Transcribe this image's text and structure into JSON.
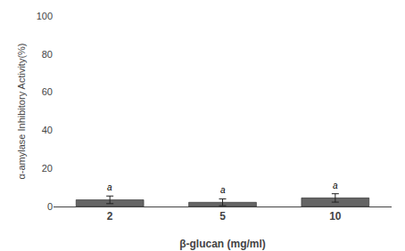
{
  "chart_data": {
    "type": "bar",
    "categories": [
      "2",
      "5",
      "10"
    ],
    "values": [
      3.5,
      2.2,
      4.5
    ],
    "errors": [
      2.0,
      1.8,
      2.2
    ],
    "annotations": [
      "a",
      "a",
      "a"
    ],
    "color": "#646464",
    "xlabel": "β-glucan (mg/ml)",
    "ylabel": "α-amylase Inhibitory Activity(%)",
    "ylim": [
      0,
      100
    ],
    "yticks": [
      0,
      20,
      40,
      60,
      80,
      100
    ],
    "grid": false
  }
}
